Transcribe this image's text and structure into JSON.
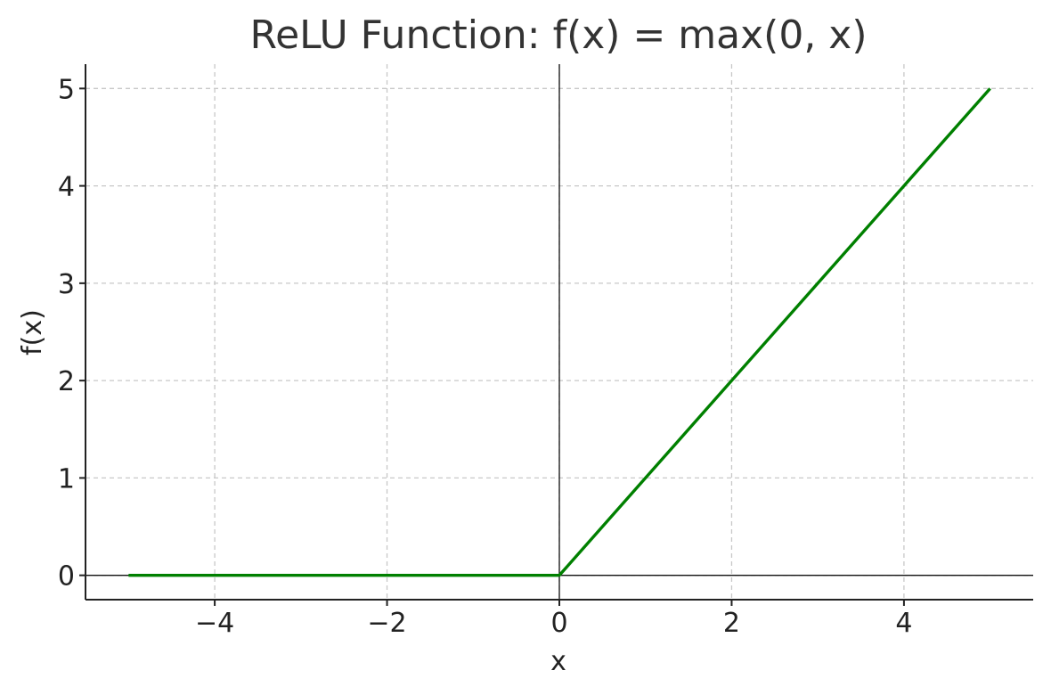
{
  "chart_data": {
    "type": "line",
    "title": "ReLU Function: f(x) = max(0, x)",
    "xlabel": "x",
    "ylabel": "f(x)",
    "xlim": [
      -5.5,
      5.5
    ],
    "ylim": [
      -0.25,
      5.25
    ],
    "x_ticks": [
      -4,
      -2,
      0,
      2,
      4
    ],
    "x_tick_labels": [
      "−4",
      "−2",
      "0",
      "2",
      "4"
    ],
    "y_ticks": [
      0,
      1,
      2,
      3,
      4,
      5
    ],
    "y_tick_labels": [
      "0",
      "1",
      "2",
      "3",
      "4",
      "5"
    ],
    "grid": true,
    "reference_lines": {
      "x": 0,
      "y": 0
    },
    "series": [
      {
        "color": "#008000",
        "x": [
          -5,
          -4,
          -3,
          -2,
          -1,
          0,
          1,
          2,
          3,
          4,
          5
        ],
        "y": [
          0,
          0,
          0,
          0,
          0,
          0,
          1,
          2,
          3,
          4,
          5
        ]
      }
    ]
  }
}
